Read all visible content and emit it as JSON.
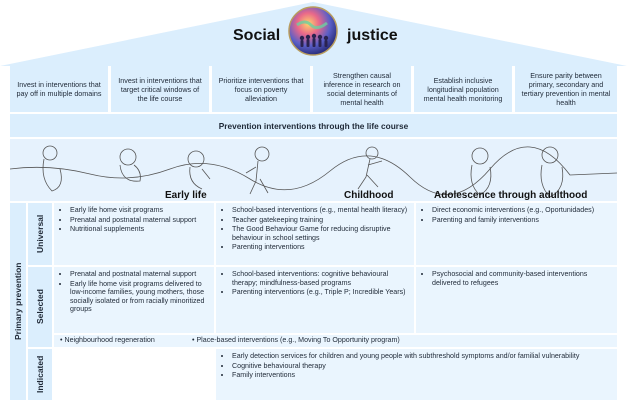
{
  "title": {
    "left": "Social",
    "right": "justice"
  },
  "pillars": [
    "Invest in interventions that pay off in multiple domains",
    "Invest in interventions that target critical windows of the life course",
    "Prioritize interventions that focus on poverty alleviation",
    "Strengthen causal inference in research on social determinants of mental health",
    "Establish inclusive longitudinal population mental health monitoring",
    "Ensure parity between primary, secondary and tertiary prevention in mental health"
  ],
  "band": "Prevention interventions through the life course",
  "stages": [
    "Early life",
    "Childhood",
    "Adolescence through adulthood"
  ],
  "side_label": "Primary prevention",
  "rows": {
    "universal": {
      "label": "Universal",
      "early": [
        "Early life home visit programs",
        "Prenatal and postnatal maternal support",
        "Nutritional supplements"
      ],
      "childhood": [
        "School-based interventions (e.g., mental health literacy)",
        "Teacher gatekeeping training",
        "The Good Behaviour Game for reducing disruptive behaviour in school settings",
        "Parenting interventions"
      ],
      "adolescence": [
        "Direct economic interventions (e.g., Oportunidades)",
        "Parenting and family interventions"
      ]
    },
    "selected": {
      "label": "Selected",
      "early": [
        "Prenatal and postnatal maternal support",
        "Early life home visit programs delivered to low-income families, young mothers, those socially isolated or from racially minoritized groups"
      ],
      "childhood": [
        "School-based interventions: cognitive behavioural therapy; mindfulness-based programs",
        "Parenting interventions (e.g., Triple P; Incredible Years)"
      ],
      "adolescence": [
        "Psychosocial and community-based interventions delivered to refugees"
      ],
      "wide": [
        "Neighbourhood regeneration",
        "Place-based interventions (e.g., Moving To Opportunity program)"
      ]
    },
    "indicated": {
      "label": "Indicated",
      "items": [
        "Early detection services for children and young people with subthreshold symptoms and/or familial vulnerability",
        "Cognitive behavioural therapy",
        "Family interventions"
      ]
    }
  },
  "colors": {
    "panel": "#dbeefd",
    "cell": "#eaf5fe",
    "roof": "#dbeefd",
    "accent": "#2a6fb0"
  }
}
